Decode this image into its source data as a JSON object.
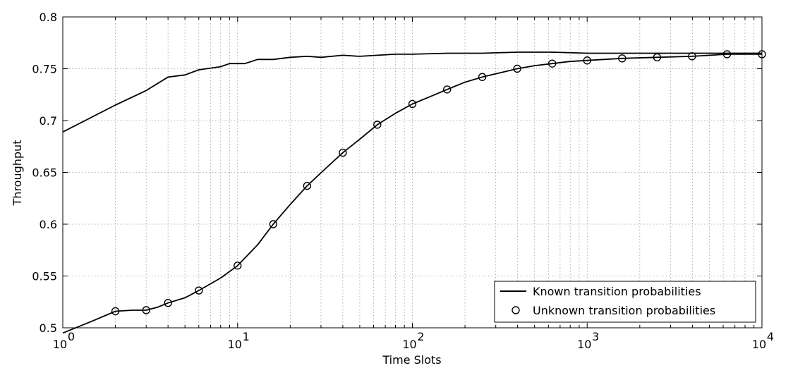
{
  "chart_data": {
    "type": "line",
    "x_scale": "log",
    "xlim": [
      1,
      10000
    ],
    "ylim": [
      0.5,
      0.8
    ],
    "xlabel": "Time Slots",
    "ylabel": "Throughput",
    "grid": true,
    "legend_position": "bottom-right",
    "x_tick_labels": [
      {
        "value": 1,
        "base": "10",
        "exp": "0"
      },
      {
        "value": 10,
        "base": "10",
        "exp": "1"
      },
      {
        "value": 100,
        "base": "10",
        "exp": "2"
      },
      {
        "value": 1000,
        "base": "10",
        "exp": "3"
      },
      {
        "value": 10000,
        "base": "10",
        "exp": "4"
      }
    ],
    "y_ticks": [
      0.5,
      0.55,
      0.6,
      0.65,
      0.7,
      0.75,
      0.8
    ],
    "y_tick_labels": [
      "0.5",
      "0.55",
      "0.6",
      "0.65",
      "0.7",
      "0.75",
      "0.8"
    ],
    "series": [
      {
        "name": "Known transition probabilities",
        "style": "solid-line",
        "x": [
          1,
          2,
          3,
          4,
          5,
          6,
          8,
          9,
          10,
          11,
          12,
          13,
          16,
          20,
          25,
          30,
          40,
          50,
          63,
          80,
          100,
          160,
          250,
          400,
          630,
          1000,
          2500,
          10000
        ],
        "y": [
          0.689,
          0.715,
          0.729,
          0.742,
          0.744,
          0.749,
          0.752,
          0.755,
          0.755,
          0.755,
          0.757,
          0.759,
          0.759,
          0.761,
          0.762,
          0.761,
          0.763,
          0.762,
          0.763,
          0.764,
          0.764,
          0.765,
          0.765,
          0.766,
          0.766,
          0.765,
          0.765,
          0.765
        ]
      },
      {
        "name": "Unknown transition probabilities",
        "style": "line-with-circles",
        "x": [
          1,
          1.5,
          2,
          2.5,
          3,
          3.5,
          4,
          5,
          6,
          8,
          10,
          13,
          16,
          20,
          25,
          32,
          40,
          50,
          63,
          80,
          100,
          126,
          158,
          200,
          251,
          316,
          398,
          501,
          631,
          794,
          1000,
          1585,
          2512,
          3981,
          6310,
          10000
        ],
        "y": [
          0.495,
          0.507,
          0.516,
          0.517,
          0.517,
          0.52,
          0.524,
          0.529,
          0.536,
          0.548,
          0.56,
          0.58,
          0.6,
          0.619,
          0.637,
          0.654,
          0.669,
          0.682,
          0.696,
          0.707,
          0.716,
          0.723,
          0.73,
          0.737,
          0.742,
          0.746,
          0.75,
          0.753,
          0.755,
          0.757,
          0.758,
          0.76,
          0.761,
          0.762,
          0.764,
          0.764
        ],
        "marker_x": [
          2,
          3,
          4,
          6,
          10,
          16,
          25,
          40,
          63,
          100,
          158,
          251,
          398,
          631,
          1000,
          1585,
          2512,
          3981,
          6310,
          10000
        ],
        "marker_y": [
          0.516,
          0.517,
          0.524,
          0.536,
          0.56,
          0.6,
          0.637,
          0.669,
          0.696,
          0.716,
          0.73,
          0.742,
          0.75,
          0.755,
          0.758,
          0.76,
          0.761,
          0.762,
          0.764,
          0.764
        ]
      }
    ]
  }
}
